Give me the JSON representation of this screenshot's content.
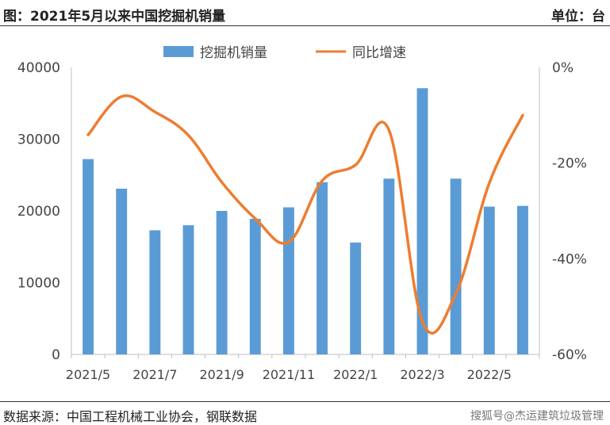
{
  "header": {
    "title": "图：2021年5月以来中国挖掘机销量",
    "unit": "单位：台"
  },
  "footer": {
    "source": "数据来源：中国工程机械工业协会，钢联数据",
    "watermark": "搜狐号@杰运建筑垃圾管理"
  },
  "colors": {
    "bar": "#5b9bd5",
    "line": "#ed7d31"
  },
  "chart_data": {
    "type": "bar",
    "categories": [
      "2021/5",
      "2021/6",
      "2021/7",
      "2021/8",
      "2021/9",
      "2021/10",
      "2021/11",
      "2021/12",
      "2022/1",
      "2022/2",
      "2022/3",
      "2022/4",
      "2022/5",
      "2022/6"
    ],
    "x_tick_labels": [
      "2021/5",
      "2021/7",
      "2021/9",
      "2021/11",
      "2022/1",
      "2022/3",
      "2022/5"
    ],
    "series": [
      {
        "name": "挖掘机销量",
        "type": "bar",
        "axis": "left",
        "values": [
          27220,
          23100,
          17300,
          18000,
          20000,
          18900,
          20500,
          24000,
          15600,
          24500,
          37100,
          24500,
          20600,
          20700
        ]
      },
      {
        "name": "同比增速",
        "type": "line",
        "axis": "right",
        "values": [
          -14.1,
          -6.1,
          -9.3,
          -14.2,
          -24.0,
          -31.6,
          -36.5,
          -23.7,
          -20.4,
          -13.1,
          -53.1,
          -47.3,
          -24.2,
          -10.0
        ]
      }
    ],
    "y_left": {
      "min": 0,
      "max": 40000,
      "ticks": [
        "0",
        "10000",
        "20000",
        "30000",
        "40000"
      ]
    },
    "y_right": {
      "min": -60,
      "max": 0,
      "ticks": [
        "0%",
        "-20%",
        "-40%",
        "-60%"
      ]
    },
    "legend_position": "top-center",
    "grid": false
  }
}
